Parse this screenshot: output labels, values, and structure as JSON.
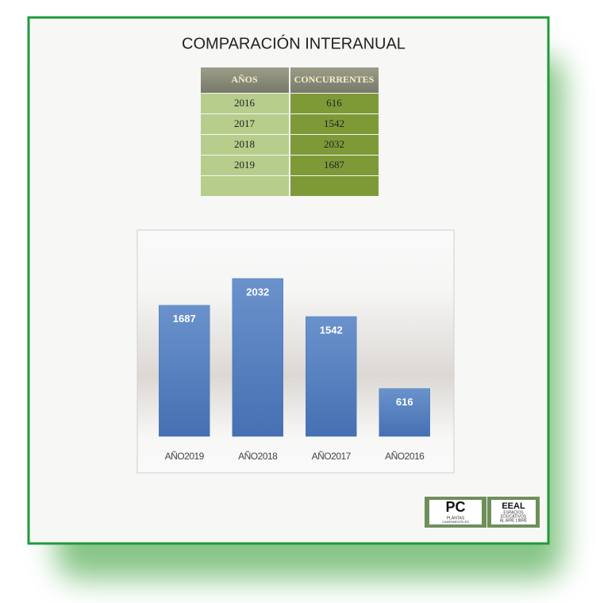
{
  "title": "COMPARACIÓN INTERANUAL",
  "table": {
    "header": [
      "AÑOS",
      "CONCURRENTES"
    ],
    "rows": [
      [
        "2016",
        "616"
      ],
      [
        "2017",
        "1542"
      ],
      [
        "2018",
        "2032"
      ],
      [
        "2019",
        "1687"
      ]
    ]
  },
  "chart_data": {
    "type": "bar",
    "categories": [
      "AÑO2019",
      "AÑO2018",
      "AÑO2017",
      "AÑO2016"
    ],
    "values": [
      1687,
      2032,
      1542,
      616
    ],
    "color": "#4f7cbf"
  },
  "logo": {
    "left": {
      "mark": "PC",
      "lines": [
        "PLANTAS",
        "CAMPAMENTILES"
      ]
    },
    "right": {
      "mark": "EEAL",
      "lines": [
        "ESPACIOS",
        "EDUCATIVOS",
        "AL AIRE LIBRE"
      ]
    }
  }
}
